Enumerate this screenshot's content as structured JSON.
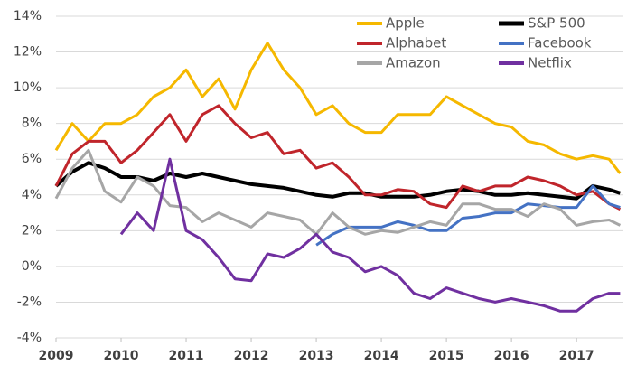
{
  "chart_data": {
    "type": "line",
    "x": [
      2009,
      2009.25,
      2009.5,
      2009.75,
      2010,
      2010.25,
      2010.5,
      2010.75,
      2011,
      2011.25,
      2011.5,
      2011.75,
      2012,
      2012.25,
      2012.5,
      2012.75,
      2013,
      2013.25,
      2013.5,
      2013.75,
      2014,
      2014.25,
      2014.5,
      2014.75,
      2015,
      2015.25,
      2015.5,
      2015.75,
      2016,
      2016.25,
      2016.5,
      2016.75,
      2017,
      2017.25,
      2017.5,
      2017.67
    ],
    "series": [
      {
        "name": "Apple",
        "color": "#f5b800",
        "values": [
          6.5,
          8,
          7,
          8,
          8,
          8.5,
          9.5,
          10,
          11,
          9.5,
          10.5,
          8.8,
          11,
          12.5,
          11,
          10,
          8.5,
          9,
          8,
          7.5,
          7.5,
          8.5,
          8.5,
          8.5,
          9.5,
          9,
          8.5,
          8,
          7.8,
          7,
          6.8,
          6.3,
          6,
          6.2,
          6,
          5.2
        ]
      },
      {
        "name": "S&P 500",
        "color": "#000000",
        "values": [
          4.5,
          5.3,
          5.8,
          5.5,
          5,
          5,
          4.8,
          5.2,
          5,
          5.2,
          5,
          4.8,
          4.6,
          4.5,
          4.4,
          4.2,
          4,
          3.9,
          4.1,
          4.1,
          3.9,
          3.9,
          3.9,
          4,
          4.2,
          4.3,
          4.2,
          4,
          4,
          4.1,
          4,
          3.9,
          3.8,
          4.5,
          4.3,
          4.1
        ]
      },
      {
        "name": "Alphabet",
        "color": "#c0252b",
        "values": [
          4.5,
          6.3,
          7,
          7,
          5.8,
          6.5,
          7.5,
          8.5,
          7,
          8.5,
          9,
          8,
          7.2,
          7.5,
          6.3,
          6.5,
          5.5,
          5.8,
          5,
          4,
          4,
          4.3,
          4.2,
          3.5,
          3.3,
          4.5,
          4.2,
          4.5,
          4.5,
          5,
          4.8,
          4.5,
          4,
          4.2,
          3.5,
          3.2
        ]
      },
      {
        "name": "Facebook",
        "color": "#4472c4",
        "values": [
          null,
          null,
          null,
          null,
          null,
          null,
          null,
          null,
          null,
          null,
          null,
          null,
          null,
          null,
          null,
          null,
          1.2,
          1.8,
          2.2,
          2.2,
          2.2,
          2.5,
          2.3,
          2,
          2,
          2.7,
          2.8,
          3,
          3,
          3.5,
          3.4,
          3.3,
          3.3,
          4.5,
          3.5,
          3.3
        ]
      },
      {
        "name": "Amazon",
        "color": "#a6a6a6",
        "values": [
          3.8,
          5.5,
          6.5,
          4.2,
          3.6,
          5,
          4.5,
          3.4,
          3.3,
          2.5,
          3,
          2.6,
          2.2,
          3,
          2.8,
          2.6,
          1.8,
          3,
          2.2,
          1.8,
          2,
          1.9,
          2.2,
          2.5,
          2.3,
          3.5,
          3.5,
          3.2,
          3.2,
          2.8,
          3.5,
          3.2,
          2.3,
          2.5,
          2.6,
          2.3
        ]
      },
      {
        "name": "Netflix",
        "color": "#7030a0",
        "values": [
          null,
          null,
          null,
          null,
          1.8,
          3,
          2,
          6,
          2,
          1.5,
          0.5,
          -0.7,
          -0.8,
          0.7,
          0.5,
          1,
          1.8,
          0.8,
          0.5,
          -0.3,
          0,
          -0.5,
          -1.5,
          -1.8,
          -1.2,
          -1.5,
          -1.8,
          -2,
          -1.8,
          -2,
          -2.2,
          -2.5,
          -2.5,
          -1.8,
          -1.5,
          -1.5
        ]
      }
    ],
    "xlim": [
      2009,
      2017.72
    ],
    "xticks": [
      2009,
      2010,
      2011,
      2012,
      2013,
      2014,
      2015,
      2016,
      2017
    ],
    "ylim": [
      -4,
      14
    ],
    "yticks": [
      {
        "value": -4,
        "label": "-4%"
      },
      {
        "value": -2,
        "label": "-2%"
      },
      {
        "value": 0,
        "label": "0%"
      },
      {
        "value": 2,
        "label": "2%"
      },
      {
        "value": 4,
        "label": "4%"
      },
      {
        "value": 6,
        "label": "6%"
      },
      {
        "value": 8,
        "label": "8%"
      },
      {
        "value": 10,
        "label": "10%"
      },
      {
        "value": 12,
        "label": "12%"
      },
      {
        "value": 14,
        "label": "14%"
      }
    ],
    "grid": true,
    "legend": "top-right"
  }
}
